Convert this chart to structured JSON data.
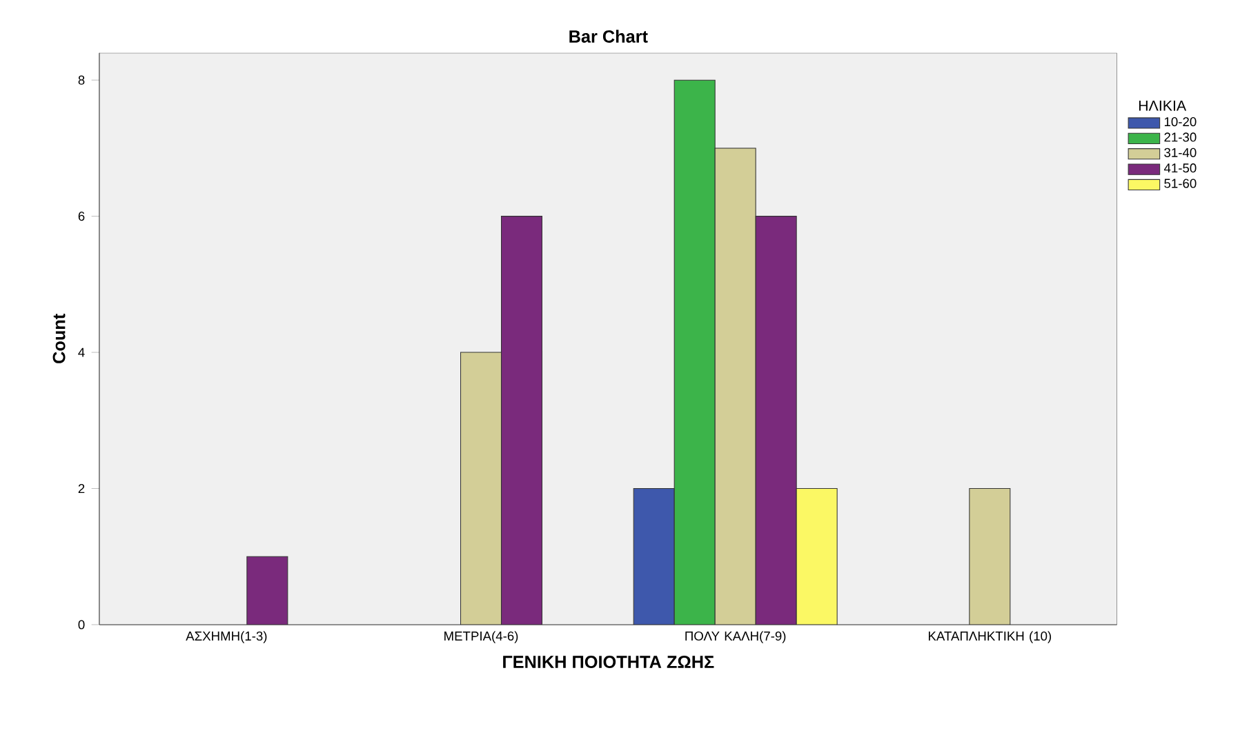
{
  "chart_data": {
    "type": "bar",
    "title": "Bar Chart",
    "xlabel": "ΓΕΝΙΚΗ ΠΟΙΟΤΗΤΑ ΖΩΗΣ",
    "ylabel": "Count",
    "legend_title": "ΗΛΙΚΙΑ",
    "legend": "right",
    "categories": [
      "ΑΣΧΗΜΗ(1-3)",
      "ΜΕΤΡΙΑ(4-6)",
      "ΠΟΛΥ ΚΑΛΗ(7-9)",
      "ΚΑΤΑΠΛΗΚΤΙΚΗ (10)"
    ],
    "series": [
      {
        "name": "10-20",
        "color": "#3e58ac",
        "values": [
          null,
          null,
          2,
          null
        ]
      },
      {
        "name": "21-30",
        "color": "#3cb44a",
        "values": [
          null,
          null,
          8,
          null
        ]
      },
      {
        "name": "31-40",
        "color": "#d3ce97",
        "values": [
          null,
          4,
          7,
          2
        ]
      },
      {
        "name": "41-50",
        "color": "#7a2a7c",
        "values": [
          1,
          6,
          6,
          null
        ]
      },
      {
        "name": "51-60",
        "color": "#fbf864",
        "values": [
          null,
          null,
          2,
          null
        ]
      }
    ],
    "ylim": [
      0,
      8.4
    ],
    "yticks": [
      0,
      2,
      4,
      6,
      8
    ],
    "grid": false
  }
}
